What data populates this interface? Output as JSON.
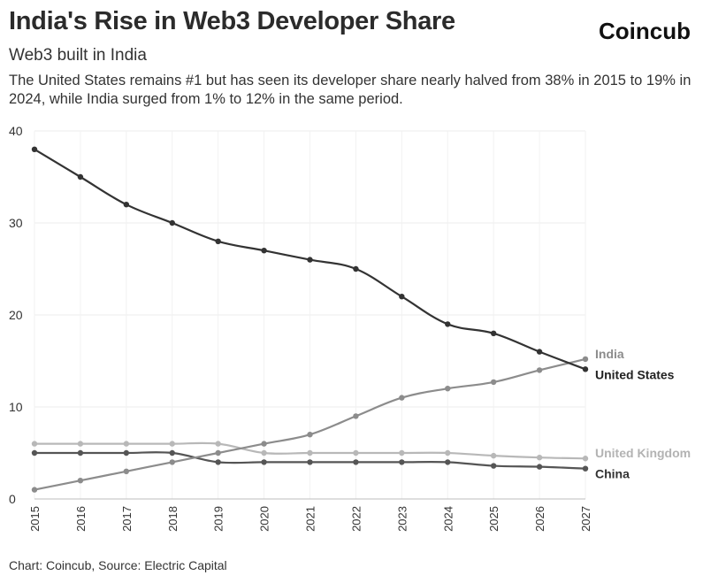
{
  "header": {
    "title": "India's Rise in Web3 Developer Share",
    "brand": "Coincub",
    "subtitle": "Web3 built in India",
    "description": "The United States remains #1 but has seen its developer share nearly halved from 38% in 2015 to 19% in 2024, while India surged from 1% to 12% in the same period."
  },
  "footer": {
    "source": "Chart: Coincub, Source: Electric Capital"
  },
  "chart_data": {
    "type": "line",
    "title": "India's Rise in Web3 Developer Share",
    "subtitle": "Web3 built in India",
    "xlabel": "",
    "ylabel": "",
    "x": [
      "2015",
      "2016",
      "2017",
      "2018",
      "2019",
      "2020",
      "2021",
      "2022",
      "2023",
      "2024",
      "2025",
      "2026",
      "2027"
    ],
    "ylim": [
      0,
      40
    ],
    "yticks": [
      0,
      10,
      20,
      30,
      40
    ],
    "grid": true,
    "legend": "end-of-line labels",
    "series": [
      {
        "name": "United States",
        "color": "#333333",
        "values": [
          38,
          35,
          32,
          30,
          28,
          27,
          26,
          25,
          22,
          19,
          18,
          16,
          14.1
        ]
      },
      {
        "name": "India",
        "color": "#8c8c8c",
        "values": [
          1,
          2,
          3,
          4,
          5,
          6,
          7,
          9,
          11,
          12,
          12.7,
          14,
          15.2
        ]
      },
      {
        "name": "United Kingdom",
        "color": "#b8b8b8",
        "values": [
          6,
          6,
          6,
          6,
          6,
          5,
          5,
          5,
          5,
          5,
          4.7,
          4.5,
          4.4
        ]
      },
      {
        "name": "China",
        "color": "#555555",
        "values": [
          5,
          5,
          5,
          5,
          4,
          4,
          4,
          4,
          4,
          4,
          3.6,
          3.5,
          3.3
        ]
      }
    ]
  }
}
